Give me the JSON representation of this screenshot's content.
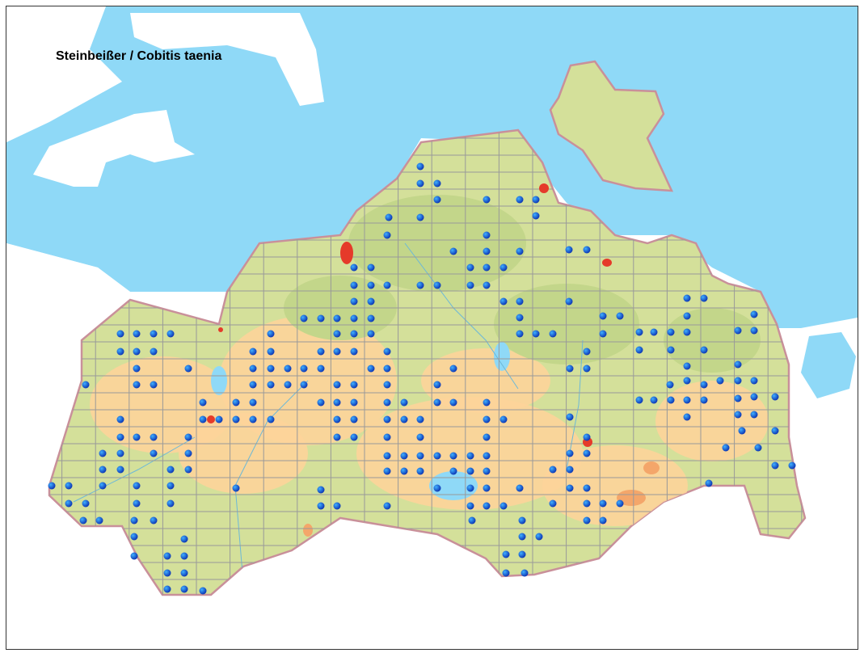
{
  "map": {
    "title": "Steinbeißer / Cobitis taenia",
    "colors": {
      "sea": "#8fd9f7",
      "land_outside": "#ffffff",
      "lowland": "#d4e09a",
      "green": "#c3d68a",
      "upland": "#fdd49a",
      "upland_high": "#f4a66a",
      "border": "#c9909a",
      "grid": "#999999",
      "city": "#e53a2a",
      "record_dot": "#0b3fc4",
      "lakes_rivers": "#8fd9f7"
    },
    "layers": [
      "sea",
      "land",
      "grid",
      "rivers",
      "cities",
      "records"
    ],
    "record_symbol": "blue-dot"
  }
}
